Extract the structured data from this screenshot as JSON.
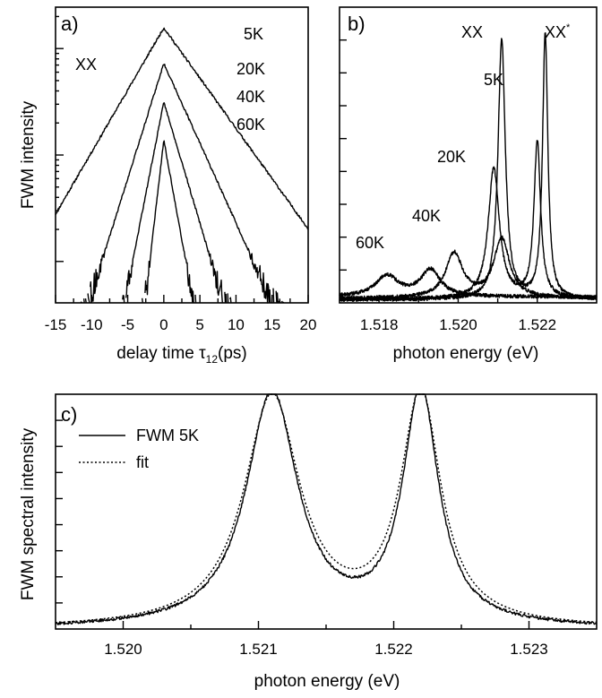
{
  "chart_data": [
    {
      "panel_label": "a)",
      "type": "line",
      "xlabel": "delay time",
      "xlabel_symbol": "τ",
      "xlabel_sub": "12",
      "xlabel_unit": "(ps)",
      "ylabel": "FWM intensity",
      "xlim": [
        -15,
        20
      ],
      "ylim": [
        0,
        1
      ],
      "log_scale_y": true,
      "xticks": [
        -15,
        -10,
        -5,
        0,
        5,
        10,
        15,
        20
      ],
      "tick_labels": [
        "-15",
        "-10",
        "-5",
        "0",
        "5",
        "10",
        "15",
        "20"
      ],
      "annotation": "XX",
      "series_labels": [
        "5K",
        "20K",
        "40K",
        "60K"
      ],
      "series": [
        {
          "name": "5K",
          "peak": 0.93,
          "decay_left": 0.042,
          "decay_right": 0.034,
          "x_min": -15,
          "x_max": 20
        },
        {
          "name": "20K",
          "peak": 0.81,
          "decay_left": 0.078,
          "decay_right": 0.054,
          "x_min": -15,
          "x_max": 20
        },
        {
          "name": "40K",
          "peak": 0.68,
          "decay_left": 0.125,
          "decay_right": 0.082,
          "x_min": -15,
          "x_max": 20
        },
        {
          "name": "60K",
          "peak": 0.55,
          "decay_left": 0.21,
          "decay_right": 0.135,
          "x_min": -15,
          "x_max": 20
        }
      ]
    },
    {
      "panel_label": "b)",
      "type": "line",
      "xlabel": "photon energy (eV)",
      "xlim": [
        1.517,
        1.5235
      ],
      "ylim": [
        0,
        1
      ],
      "xticks": [
        1.518,
        1.52,
        1.522
      ],
      "tick_labels": [
        "1.518",
        "1.520",
        "1.522"
      ],
      "peak_labels": [
        "XX",
        "XX*"
      ],
      "series_labels": [
        "5K",
        "20K",
        "40K",
        "60K"
      ],
      "series": [
        {
          "name": "5K",
          "baseline": 0.01,
          "peaks": [
            {
              "x": 1.5211,
              "amp": 0.88,
              "width": 0.00011
            },
            {
              "x": 1.5222,
              "amp": 0.9,
              "width": 8e-05
            }
          ]
        },
        {
          "name": "20K",
          "baseline": 0.012,
          "peaks": [
            {
              "x": 1.5209,
              "amp": 0.44,
              "width": 0.00017
            },
            {
              "x": 1.522,
              "amp": 0.53,
              "width": 0.0001
            }
          ]
        },
        {
          "name": "40K",
          "baseline": 0.015,
          "peaks": [
            {
              "x": 1.5199,
              "amp": 0.15,
              "width": 0.00026
            },
            {
              "x": 1.5211,
              "amp": 0.2,
              "width": 0.00024
            }
          ]
        },
        {
          "name": "60K",
          "baseline": 0.02,
          "peaks": [
            {
              "x": 1.5182,
              "amp": 0.07,
              "width": 0.00035
            },
            {
              "x": 1.5193,
              "amp": 0.09,
              "width": 0.0003
            }
          ]
        }
      ]
    },
    {
      "panel_label": "c)",
      "type": "line",
      "xlabel": "photon energy (eV)",
      "ylabel": "FWM spectral intensity",
      "xlim": [
        1.5195,
        1.5235
      ],
      "ylim": [
        0,
        1
      ],
      "xticks": [
        1.52,
        1.521,
        1.522,
        1.523
      ],
      "tick_labels": [
        "1.520",
        "1.521",
        "1.522",
        "1.523"
      ],
      "legend": [
        {
          "label": "FWM 5K",
          "style": "solid"
        },
        {
          "label": "fit",
          "style": "dotted"
        }
      ],
      "series": [
        {
          "name": "FWM 5K",
          "baseline": 0.0,
          "peaks": [
            {
              "x": 1.5211,
              "amp": 1.0,
              "width": 0.00023
            },
            {
              "x": 1.5222,
              "amp": 1.0,
              "width": 0.00016
            }
          ]
        },
        {
          "name": "fit",
          "baseline": 0.0,
          "peaks": [
            {
              "x": 1.5211,
              "amp": 0.98,
              "width": 0.00025
            },
            {
              "x": 1.5222,
              "amp": 0.98,
              "width": 0.00018
            }
          ]
        }
      ]
    }
  ]
}
